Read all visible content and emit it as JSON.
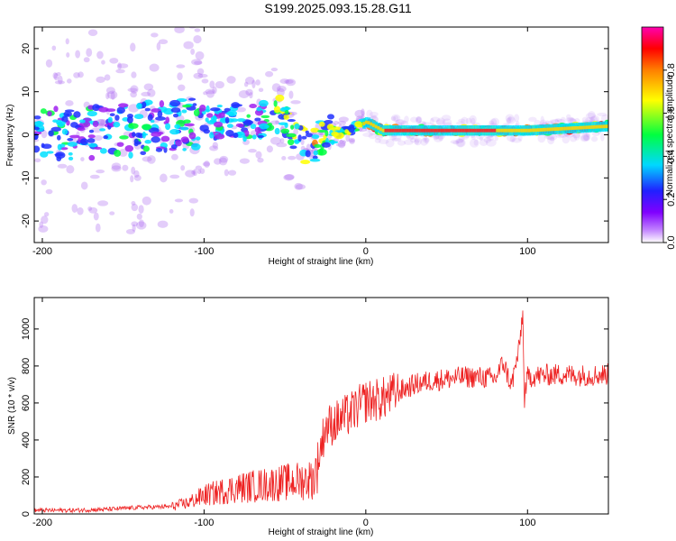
{
  "figure": {
    "title": "S199.2025.093.15.28.G11"
  },
  "chart_data": [
    {
      "type": "heatmap",
      "xlabel": "Height of straight line (km)",
      "ylabel": "Frequency (Hz)",
      "xlim": [
        -205,
        150
      ],
      "ylim": [
        -25,
        25
      ],
      "xticks": [
        -200,
        -100,
        0,
        100
      ],
      "yticks": [
        -20,
        -10,
        0,
        10,
        20
      ],
      "colorbar": {
        "label": "Normalized spectral amplitude",
        "range": [
          0,
          1
        ],
        "ticks": [
          0.0,
          0.2,
          0.4,
          0.6,
          0.8
        ],
        "colors": [
          "#ffffff",
          "#a020f0",
          "#2030ff",
          "#00e0ff",
          "#00ff40",
          "#ffff00",
          "#ff8000",
          "#ff0000",
          "#ff00c0"
        ]
      },
      "ridge": [
        {
          "x": -200,
          "freq": 0
        },
        {
          "x": -150,
          "freq": 1
        },
        {
          "x": -100,
          "freq": 3
        },
        {
          "x": -70,
          "freq": 3
        },
        {
          "x": -52,
          "freq": 5
        },
        {
          "x": -45,
          "freq": -1
        },
        {
          "x": -35,
          "freq": -3
        },
        {
          "x": -25,
          "freq": 0
        },
        {
          "x": -10,
          "freq": 1
        },
        {
          "x": 0,
          "freq": 3
        },
        {
          "x": 10,
          "freq": 1
        },
        {
          "x": 50,
          "freq": 1
        },
        {
          "x": 100,
          "freq": 1
        },
        {
          "x": 150,
          "freq": 2
        }
      ]
    },
    {
      "type": "line",
      "xlabel": "Height of straight line (km)",
      "ylabel": "SNR (10 * v/v)",
      "xlim": [
        -205,
        150
      ],
      "ylim": [
        0,
        1170
      ],
      "xticks": [
        -200,
        -100,
        0,
        100
      ],
      "yticks": [
        0,
        200,
        400,
        600,
        800,
        1000
      ],
      "series": [
        {
          "color": "#ee2222",
          "x": [
            -205,
            -180,
            -160,
            -140,
            -120,
            -110,
            -100,
            -80,
            -60,
            -40,
            -32,
            -28,
            -25,
            -20,
            -10,
            0,
            10,
            20,
            30,
            40,
            50,
            60,
            70,
            80,
            85,
            90,
            95,
            97,
            98,
            100,
            110,
            120,
            130,
            140,
            150
          ],
          "values": [
            20,
            20,
            25,
            35,
            40,
            60,
            100,
            140,
            160,
            180,
            190,
            350,
            470,
            490,
            540,
            610,
            620,
            660,
            700,
            720,
            730,
            740,
            740,
            730,
            820,
            690,
            900,
            1100,
            620,
            740,
            750,
            755,
            750,
            750,
            755
          ]
        }
      ]
    }
  ]
}
